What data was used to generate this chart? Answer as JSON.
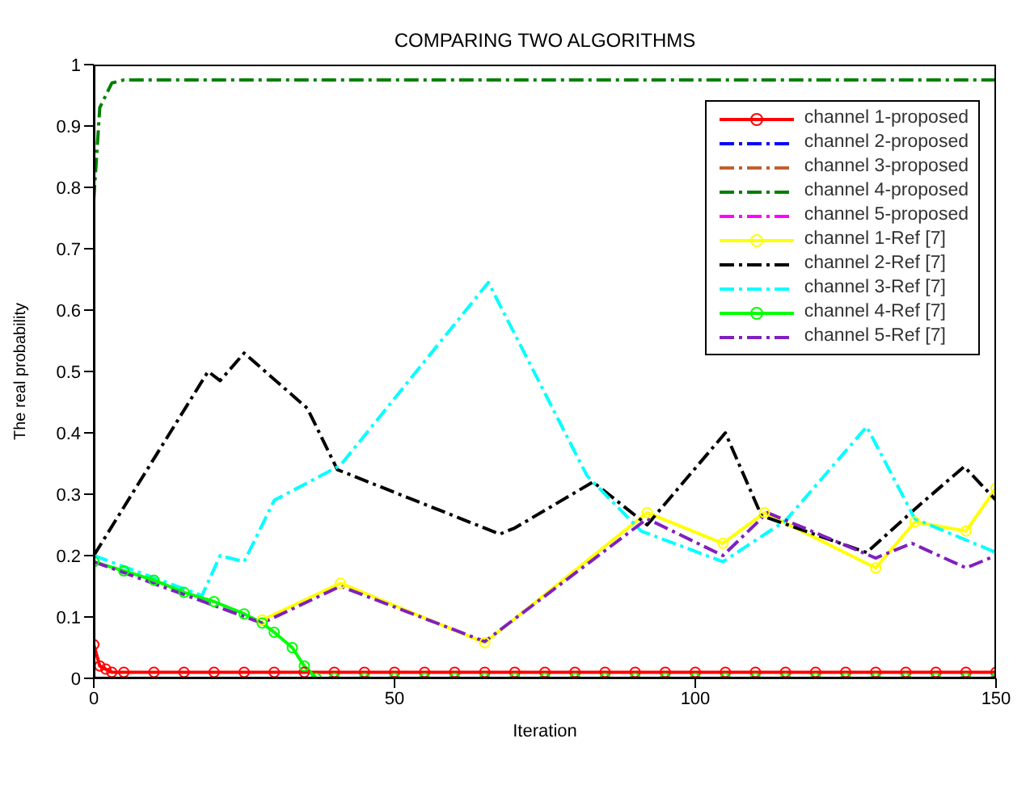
{
  "chart_data": {
    "type": "line",
    "title": "COMPARING TWO ALGORITHMS",
    "xlabel": "Iteration",
    "ylabel": "The real probability",
    "xlim": [
      0,
      150
    ],
    "xticks": [
      0,
      50,
      100,
      150
    ],
    "ylim": [
      0,
      1
    ],
    "yticks": [
      0,
      0.1,
      0.2,
      0.3,
      0.4,
      0.5,
      0.6,
      0.7,
      0.8,
      0.9,
      1
    ],
    "legend": "top right",
    "series": [
      {
        "name": "channel 1-proposed",
        "color": "#ff0000",
        "marker": "circle",
        "line_style": "solid",
        "x": [
          0,
          1,
          2,
          3,
          5,
          10,
          15,
          20,
          25,
          30,
          35,
          40,
          45,
          50,
          55,
          60,
          65,
          70,
          75,
          80,
          85,
          90,
          95,
          100,
          105,
          110,
          115,
          120,
          125,
          130,
          135,
          140,
          145,
          150
        ],
        "values": [
          0.055,
          0.02,
          0.015,
          0.01,
          0.01,
          0.01,
          0.01,
          0.01,
          0.01,
          0.01,
          0.01,
          0.01,
          0.01,
          0.01,
          0.01,
          0.01,
          0.01,
          0.01,
          0.01,
          0.01,
          0.01,
          0.01,
          0.01,
          0.01,
          0.01,
          0.01,
          0.01,
          0.01,
          0.01,
          0.01,
          0.01,
          0.01,
          0.01,
          0.01
        ]
      },
      {
        "name": "channel 2-proposed",
        "color": "#0000ff",
        "marker": "none",
        "line_style": "dashed"
      },
      {
        "name": "channel 3-proposed",
        "color": "#c06030",
        "marker": "none",
        "line_style": "dashed"
      },
      {
        "name": "channel 4-proposed",
        "color": "#008000",
        "marker": "none",
        "line_style": "dashed",
        "x": [
          0,
          1,
          3,
          5,
          150
        ],
        "values": [
          0.78,
          0.93,
          0.97,
          0.975,
          0.975
        ]
      },
      {
        "name": "channel 5-proposed",
        "color": "#ff00ff",
        "marker": "none",
        "line_style": "dashed"
      },
      {
        "name": "channel 1-Ref [7]",
        "color": "#ffff00",
        "marker": "circle",
        "line_style": "solid",
        "x": [
          28,
          41,
          65,
          92,
          104.6,
          111.5,
          130,
          136.5,
          145,
          150
        ],
        "values": [
          0.095,
          0.155,
          0.058,
          0.27,
          0.22,
          0.27,
          0.18,
          0.255,
          0.24,
          0.31
        ]
      },
      {
        "name": "channel 2-Ref [7]",
        "color": "#000000",
        "marker": "none",
        "line_style": "dashed",
        "x": [
          0,
          19,
          21,
          25,
          35.5,
          40.5,
          67.5,
          70,
          83,
          92,
          105,
          111,
          128.5,
          137,
          144.7,
          150
        ],
        "values": [
          0.2,
          0.5,
          0.485,
          0.53,
          0.44,
          0.34,
          0.235,
          0.245,
          0.32,
          0.25,
          0.4,
          0.265,
          0.205,
          0.28,
          0.345,
          0.29
        ]
      },
      {
        "name": "channel 3-Ref [7]",
        "color": "#00ffff",
        "marker": "none",
        "line_style": "dashed",
        "x": [
          0,
          18,
          21,
          25,
          30,
          41,
          65.6,
          82,
          91,
          104.6,
          115,
          128.5,
          136.5,
          150
        ],
        "values": [
          0.2,
          0.135,
          0.2,
          0.19,
          0.29,
          0.347,
          0.645,
          0.33,
          0.24,
          0.19,
          0.257,
          0.41,
          0.26,
          0.205
        ]
      },
      {
        "name": "channel 4-Ref [7]",
        "color": "#00ff00",
        "marker": "circle",
        "line_style": "solid",
        "x": [
          0,
          5,
          10,
          15,
          20,
          25,
          28,
          30,
          33,
          35,
          37,
          40,
          45,
          50,
          55,
          60,
          65,
          70,
          75,
          80,
          85,
          90,
          95,
          100,
          105,
          110,
          115,
          120,
          125,
          130,
          135,
          140,
          145,
          150
        ],
        "values": [
          0.19,
          0.175,
          0.16,
          0.14,
          0.125,
          0.105,
          0.09,
          0.075,
          0.05,
          0.02,
          0,
          0,
          0,
          0,
          0,
          0,
          0,
          0,
          0,
          0,
          0,
          0,
          0,
          0,
          0,
          0,
          0,
          0,
          0,
          0,
          0,
          0,
          0,
          0
        ]
      },
      {
        "name": "channel 5-Ref [7]",
        "color": "#8020c0",
        "marker": "none",
        "line_style": "dashed",
        "x": [
          0,
          28,
          41,
          65,
          92,
          104.6,
          112,
          130,
          136,
          145,
          150
        ],
        "values": [
          0.19,
          0.09,
          0.15,
          0.06,
          0.26,
          0.2,
          0.27,
          0.196,
          0.22,
          0.18,
          0.2
        ]
      }
    ]
  }
}
